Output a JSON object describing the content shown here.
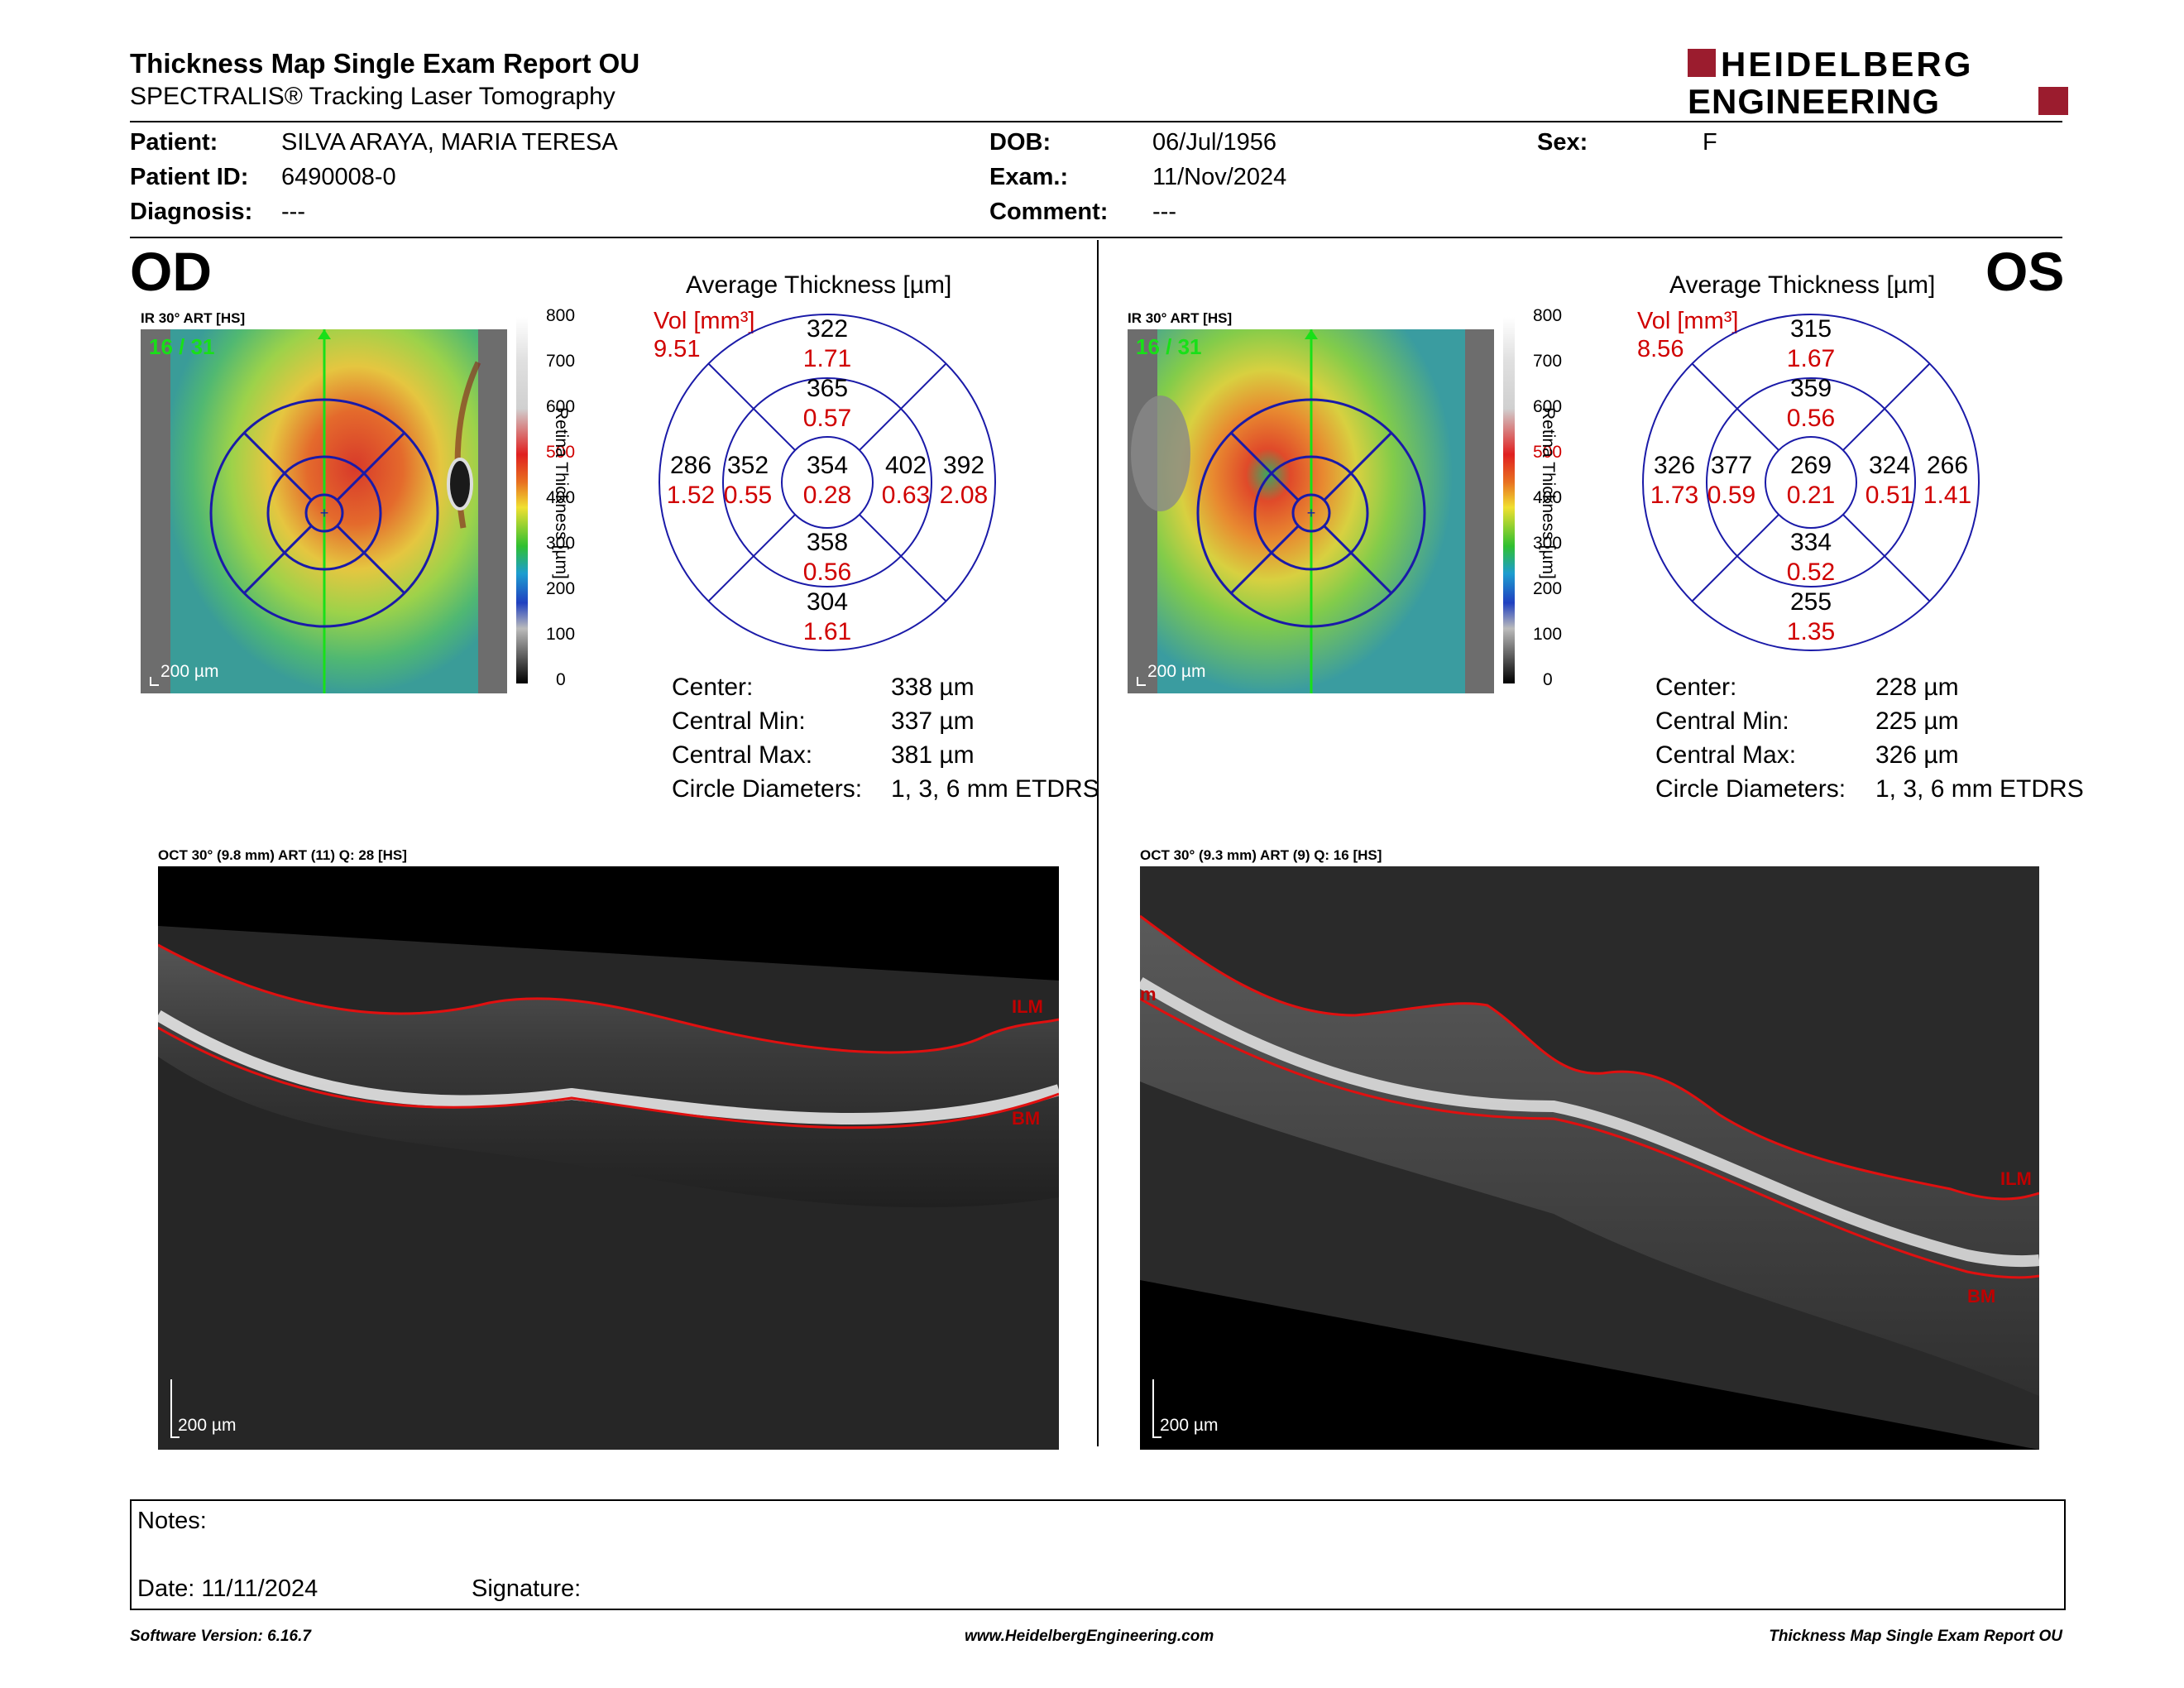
{
  "header": {
    "title": "Thickness Map Single Exam Report OU",
    "subtitle": "SPECTRALIS® Tracking Laser Tomography",
    "logo_line1": "HEIDELBERG",
    "logo_line2": "ENGINEERING",
    "logo_color": "#9b1c2e"
  },
  "patient": {
    "patient_label": "Patient:",
    "patient_value": "SILVA ARAYA, MARIA TERESA",
    "id_label": "Patient ID:",
    "id_value": "6490008-0",
    "diagnosis_label": "Diagnosis:",
    "diagnosis_value": "---",
    "dob_label": "DOB:",
    "dob_value": "06/Jul/1956",
    "exam_label": "Exam.:",
    "exam_value": "11/Nov/2024",
    "comment_label": "Comment:",
    "comment_value": "---",
    "sex_label": "Sex:",
    "sex_value": "F"
  },
  "colorbar": {
    "ticks": [
      "800",
      "700",
      "600",
      "500",
      "400",
      "300",
      "200",
      "100",
      "0"
    ],
    "axis_label": "Retina Thickness [µm]",
    "highlight_tick_color": "#d00000"
  },
  "od": {
    "eye": "OD",
    "ir_title": "IR 30° ART [HS]",
    "frame": "16 / 31",
    "scale": "200 µm",
    "avg_title": "Average Thickness [µm]",
    "vol_label": "Vol [mm³]",
    "vol_total": "9.51",
    "sectors": {
      "center": [
        "354",
        "0.28"
      ],
      "inner_superior": [
        "365",
        "0.57"
      ],
      "inner_nasal": [
        "402",
        "0.63"
      ],
      "inner_inferior": [
        "358",
        "0.56"
      ],
      "inner_temporal": [
        "352",
        "0.55"
      ],
      "outer_superior": [
        "322",
        "1.71"
      ],
      "outer_nasal": [
        "392",
        "2.08"
      ],
      "outer_inferior": [
        "304",
        "1.61"
      ],
      "outer_temporal": [
        "286",
        "1.52"
      ]
    },
    "stats": [
      {
        "label": "Center:",
        "value": "338 µm"
      },
      {
        "label": "Central Min:",
        "value": "337 µm"
      },
      {
        "label": "Central Max:",
        "value": "381 µm"
      },
      {
        "label": "Circle Diameters:",
        "value": "1, 3, 6 mm ETDRS"
      }
    ],
    "oct_title": "OCT 30° (9.8 mm) ART (11) Q: 28 [HS]",
    "oct_scale": "200 µm",
    "ilm": "ILM",
    "bm": "BM"
  },
  "os": {
    "eye": "OS",
    "ir_title": "IR 30° ART [HS]",
    "frame": "16 / 31",
    "scale": "200 µm",
    "avg_title": "Average Thickness [µm]",
    "vol_label": "Vol [mm³]",
    "vol_total": "8.56",
    "sectors": {
      "center": [
        "269",
        "0.21"
      ],
      "inner_superior": [
        "359",
        "0.56"
      ],
      "inner_nasal": [
        "377",
        "0.59"
      ],
      "inner_inferior": [
        "334",
        "0.52"
      ],
      "inner_temporal": [
        "324",
        "0.51"
      ],
      "outer_superior": [
        "315",
        "1.67"
      ],
      "outer_nasal": [
        "326",
        "1.73"
      ],
      "outer_inferior": [
        "255",
        "1.35"
      ],
      "outer_temporal": [
        "266",
        "1.41"
      ]
    },
    "stats": [
      {
        "label": "Center:",
        "value": "228 µm"
      },
      {
        "label": "Central Min:",
        "value": "225 µm"
      },
      {
        "label": "Central Max:",
        "value": "326 µm"
      },
      {
        "label": "Circle Diameters:",
        "value": "1, 3, 6 mm ETDRS"
      }
    ],
    "oct_title": "OCT 30° (9.3 mm) ART (9) Q: 16 [HS]",
    "oct_scale": "200 µm",
    "ilm": "ILM",
    "bm": "BM",
    "ilm_left_fragment": "m"
  },
  "notes": {
    "notes_label": "Notes:",
    "date_label": "Date: 11/11/2024",
    "signature_label": "Signature:"
  },
  "footer": {
    "software": "Software Version: 6.16.7",
    "website": "www.HeidelbergEngineering.com",
    "report": "Thickness Map Single Exam Report OU"
  }
}
